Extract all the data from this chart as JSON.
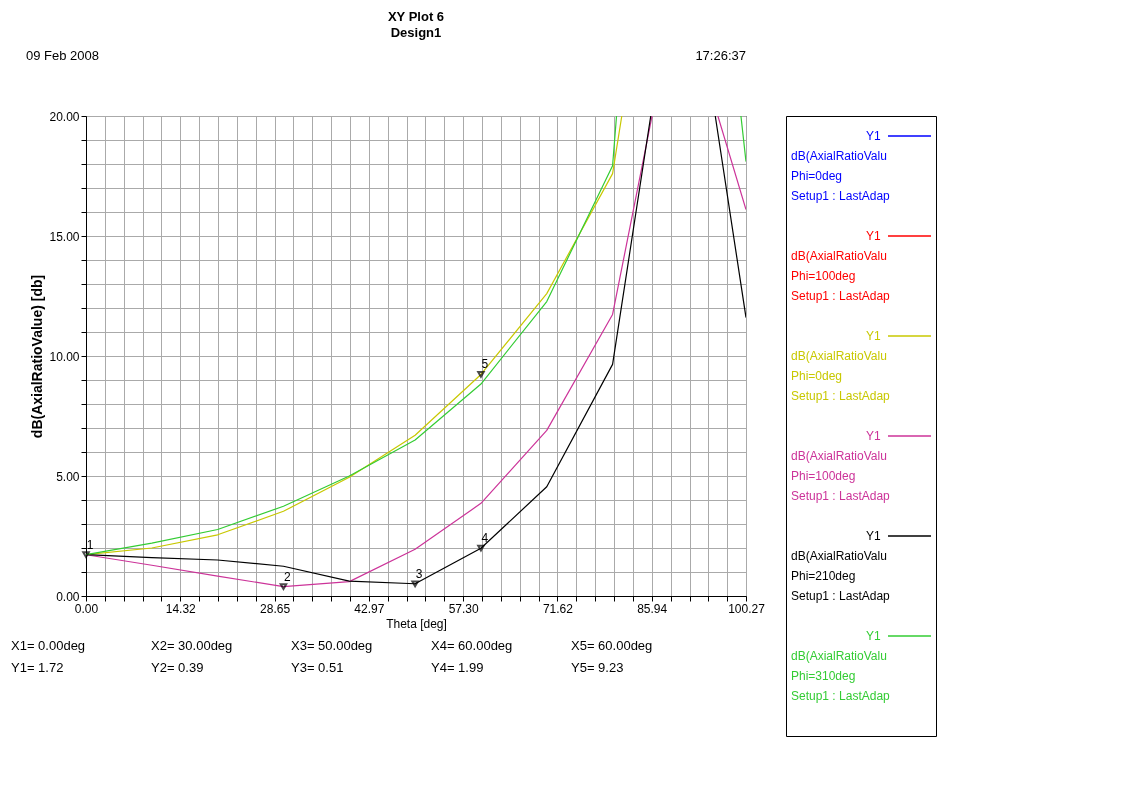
{
  "chart_data": {
    "type": "line",
    "title": "XY Plot 6",
    "subtitle": "Design1",
    "xlabel": "Theta [deg]",
    "ylabel": "dB(AxialRatioValue) [db]",
    "series": [
      {
        "name": "Y1\ndB(AxialRatioValu\nPhi=0deg\nSetup1 : LastAdap",
        "color": "#0000ff"
      },
      {
        "name": "Y1\ndB(AxialRatioValu\nPhi=100deg\nSetup1 : LastAdap",
        "color": "#ff0000"
      },
      {
        "name": "Y1\ndB(AxialRatioValu\nPhi=0deg\nSetup1 : LastAdap",
        "color": "#c8c800",
        "x": [
          0,
          10,
          20,
          30,
          40,
          50,
          60,
          70,
          80,
          81.4
        ],
        "values": [
          1.72,
          2.0,
          2.55,
          3.53,
          4.95,
          6.7,
          9.23,
          12.6,
          17.6,
          20
        ]
      },
      {
        "name": "Y1\ndB(AxialRatioValu\nPhi=100deg\nSetup1 : LastAdap",
        "color": "#cc3399",
        "x": [
          0,
          10,
          20,
          30,
          40,
          50,
          60,
          70,
          80,
          86.0,
          91,
          96.0,
          100.27
        ],
        "values": [
          1.72,
          1.28,
          0.83,
          0.39,
          0.6,
          1.95,
          3.86,
          6.9,
          11.73,
          20,
          null,
          20,
          16.1
        ]
      },
      {
        "name": "Y1\ndB(AxialRatioValu\nPhi=210deg\nSetup1 : LastAdap",
        "color": "#000000",
        "x": [
          0,
          10,
          20,
          30,
          40,
          50,
          60,
          70,
          80,
          85.8,
          90.7,
          95.6,
          100.27
        ],
        "values": [
          1.72,
          1.6,
          1.5,
          1.24,
          0.62,
          0.51,
          1.99,
          4.55,
          9.65,
          20,
          null,
          20,
          11.6
        ]
      },
      {
        "name": "Y1\ndB(AxialRatioValu\nPhi=310deg\nSetup1 : LastAdap",
        "color": "#33cc33",
        "x": [
          0,
          10,
          20,
          30,
          40,
          50,
          60,
          70,
          80,
          80.6,
          90,
          99.5,
          100.27
        ],
        "values": [
          1.72,
          2.2,
          2.77,
          3.74,
          5.0,
          6.5,
          8.83,
          12.27,
          17.93,
          20,
          null,
          20,
          18.1
        ]
      }
    ],
    "xlim": [
      0,
      100.27
    ],
    "xticks": [
      {
        "value": 0,
        "label": "0.00"
      },
      {
        "value": 2.865,
        "label": null
      },
      {
        "value": 5.73,
        "label": null
      },
      {
        "value": 8.595,
        "label": null
      },
      {
        "value": 11.46,
        "label": null
      },
      14.32,
      {
        "value": 17.185,
        "label": null
      },
      {
        "value": 20.05,
        "label": null
      },
      {
        "value": 22.915,
        "label": null
      },
      {
        "value": 25.78,
        "label": null
      },
      28.65,
      {
        "value": 31.515,
        "label": null
      },
      {
        "value": 34.38,
        "label": null
      },
      {
        "value": 37.245,
        "label": null
      },
      {
        "value": 40.11,
        "label": null
      },
      42.97,
      {
        "value": 45.845,
        "label": null
      },
      {
        "value": 48.71,
        "label": null
      },
      {
        "value": 51.575,
        "label": null
      },
      {
        "value": 54.44,
        "label": null
      },
      {
        "value": 57.3,
        "label": "57.30"
      },
      {
        "value": 60.165,
        "label": null
      },
      {
        "value": 63.03,
        "label": null
      },
      {
        "value": 65.895,
        "label": null
      },
      {
        "value": 68.76,
        "label": null
      },
      71.62,
      {
        "value": 74.495,
        "label": null
      },
      {
        "value": 77.36,
        "label": null
      },
      {
        "value": 80.225,
        "label": null
      },
      {
        "value": 83.09,
        "label": null
      },
      85.94,
      {
        "value": 88.825,
        "label": null
      },
      {
        "value": 91.69,
        "label": null
      },
      {
        "value": 94.555,
        "label": null
      },
      {
        "value": 97.42,
        "label": null
      },
      100.27
    ],
    "ylim": [
      0,
      20
    ],
    "yticks": [
      {
        "value": 0,
        "label": "0.00"
      },
      {
        "value": 1,
        "label": null
      },
      {
        "value": 2,
        "label": null
      },
      {
        "value": 3,
        "label": null
      },
      {
        "value": 4,
        "label": null
      },
      {
        "value": 5,
        "label": "5.00"
      },
      {
        "value": 6,
        "label": null
      },
      {
        "value": 7,
        "label": null
      },
      {
        "value": 8,
        "label": null
      },
      {
        "value": 9,
        "label": null
      },
      {
        "value": 10,
        "label": "10.00"
      },
      {
        "value": 11,
        "label": null
      },
      {
        "value": 12,
        "label": null
      },
      {
        "value": 13,
        "label": null
      },
      {
        "value": 14,
        "label": null
      },
      {
        "value": 15,
        "label": "15.00"
      },
      {
        "value": 16,
        "label": null
      },
      {
        "value": 17,
        "label": null
      },
      {
        "value": 18,
        "label": null
      },
      {
        "value": 19,
        "label": null
      },
      {
        "value": 20,
        "label": "20.00"
      }
    ],
    "grid": true,
    "legend": "right",
    "marker": "none",
    "line_style": "solid",
    "annotations": [
      "09 Feb 2008",
      "17:26:37",
      "X1= 0.00deg",
      "Y1= 1.72",
      "X2= 30.00deg",
      "Y2= 0.39",
      "X3= 50.00deg",
      "Y3= 0.51",
      "X4= 60.00deg",
      "Y4= 1.99",
      "X5= 60.00deg",
      "Y5= 9.23",
      {
        "text": "1",
        "x": 0,
        "y": 1.72
      },
      {
        "text": "2",
        "x": 30,
        "y": 0.39
      },
      {
        "text": "3",
        "x": 50,
        "y": 0.51
      },
      {
        "text": "4",
        "x": 60,
        "y": 1.99
      },
      {
        "text": "5",
        "x": 60,
        "y": 9.23
      }
    ]
  }
}
